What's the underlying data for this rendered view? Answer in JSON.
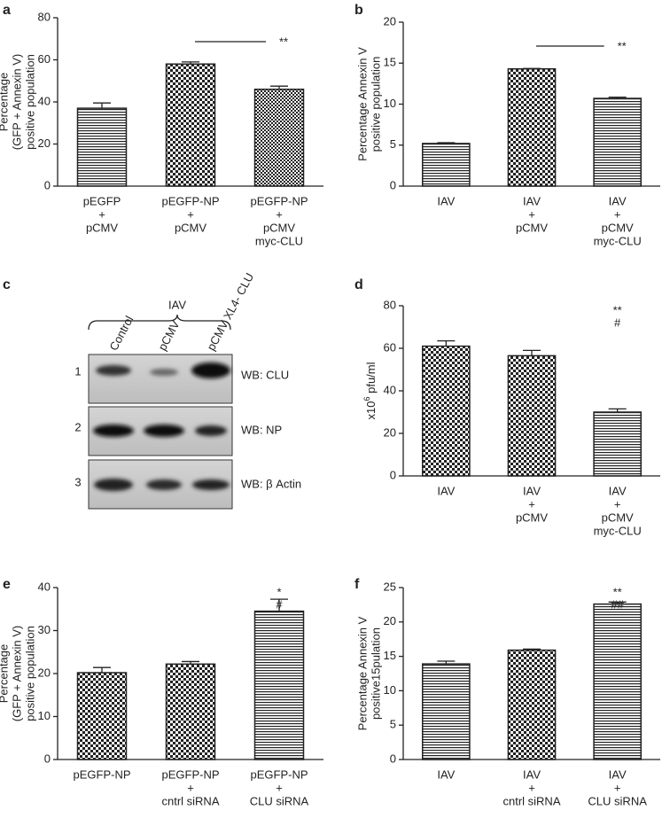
{
  "chart_data": [
    {
      "type": "bar",
      "panel": "a",
      "ylabel": [
        "Percentage",
        "(GFP + Annexin V)",
        "positive population"
      ],
      "categories": [
        [
          "pEGFP",
          "+",
          "pCMV"
        ],
        [
          "pEGFP-NP",
          "+",
          "pCMV"
        ],
        [
          "pEGFP-NP",
          "+",
          "pCMV",
          "myc-CLU"
        ]
      ],
      "values": [
        37,
        58,
        46
      ],
      "errors": [
        2.5,
        1,
        1.5
      ],
      "patterns": [
        "hlines",
        "checker",
        "checker-fine"
      ],
      "ylim": [
        0,
        80
      ],
      "yticks": [
        0,
        20,
        40,
        60,
        80
      ],
      "annotations": [
        "**"
      ],
      "significance_line": [
        1,
        2
      ]
    },
    {
      "type": "bar",
      "panel": "b",
      "ylabel": [
        "Percentage Annexin V",
        "positive population"
      ],
      "categories": [
        [
          "IAV"
        ],
        [
          "IAV",
          "+",
          "pCMV"
        ],
        [
          "IAV",
          "+",
          "pCMV",
          "myc-CLU"
        ]
      ],
      "values": [
        5.2,
        14.3,
        10.7
      ],
      "errors": [
        0.1,
        0.05,
        0.15
      ],
      "patterns": [
        "hlines",
        "checker",
        "hlines"
      ],
      "ylim": [
        0,
        20
      ],
      "yticks": [
        0,
        5,
        10,
        15,
        20
      ],
      "annotations": [
        "**"
      ],
      "significance_line": [
        1,
        2
      ]
    },
    {
      "type": "bar",
      "panel": "d",
      "ylabel_super": {
        "base": "x10",
        "exp": "6",
        "unit": " pfu/ml"
      },
      "categories": [
        [
          "IAV"
        ],
        [
          "IAV",
          "+",
          "pCMV"
        ],
        [
          "IAV",
          "+",
          "pCMV",
          "myc-CLU"
        ]
      ],
      "values": [
        61,
        56.5,
        30
      ],
      "errors": [
        2.5,
        2.5,
        1.5
      ],
      "patterns": [
        "checker",
        "checker",
        "hlines"
      ],
      "ylim": [
        0,
        80
      ],
      "yticks": [
        0,
        20,
        40,
        60,
        80
      ],
      "annotations": [
        "**",
        "#"
      ]
    },
    {
      "type": "bar",
      "panel": "e",
      "ylabel": [
        "Percentage",
        "(GFP + Annexin V)",
        "positive population"
      ],
      "categories": [
        [
          "pEGFP-NP"
        ],
        [
          "pEGFP-NP",
          "+",
          "cntrl siRNA"
        ],
        [
          "pEGFP-NP",
          "+",
          "CLU siRNA"
        ]
      ],
      "values": [
        20.2,
        22.2,
        34.5
      ],
      "errors": [
        1.2,
        0.6,
        2.8
      ],
      "patterns": [
        "checker",
        "checker",
        "hlines"
      ],
      "ylim": [
        0,
        40
      ],
      "yticks": [
        0,
        10,
        20,
        30,
        40
      ],
      "annotations": [
        "*",
        "#"
      ]
    },
    {
      "type": "bar",
      "panel": "f",
      "ylabel": [
        "Percentage Annexin V",
        "positive15pulation"
      ],
      "categories": [
        [
          "IAV"
        ],
        [
          "IAV",
          "+",
          "cntrl siRNA"
        ],
        [
          "IAV",
          "+",
          "CLU siRNA"
        ]
      ],
      "values": [
        13.9,
        15.9,
        22.6
      ],
      "errors": [
        0.4,
        0.15,
        0.3
      ],
      "patterns": [
        "hlines",
        "checker",
        "hlines"
      ],
      "ylim": [
        0,
        25
      ],
      "yticks": [
        0,
        5,
        10,
        15,
        20,
        25
      ],
      "annotations": [
        "**",
        "##"
      ]
    }
  ],
  "blot": {
    "panel": "c",
    "treatment": "IAV",
    "lanes": [
      "Control",
      "pCMV",
      "pCMV XL4- CLU"
    ],
    "rows": [
      {
        "number": 1,
        "label": "WB: CLU"
      },
      {
        "number": 2,
        "label": "WB: NP"
      },
      {
        "number": 3,
        "label": "WB: β Actin"
      }
    ]
  }
}
